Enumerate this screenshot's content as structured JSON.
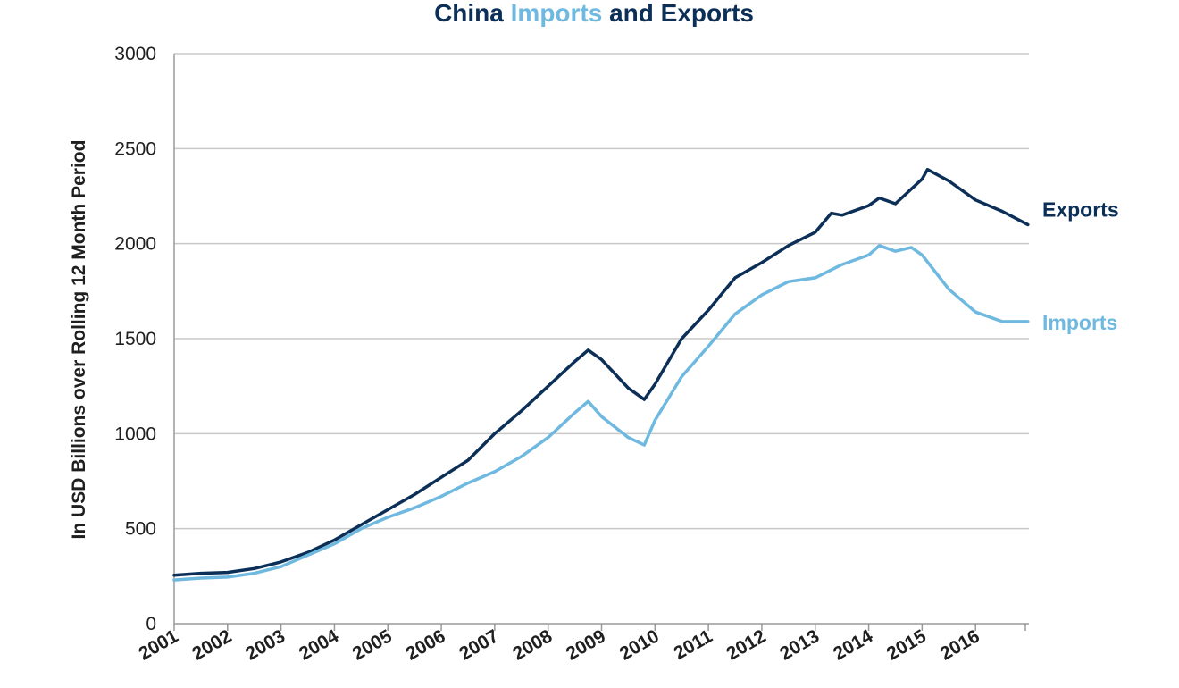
{
  "chart_data": {
    "type": "line",
    "title": {
      "part1": "China ",
      "part2": "Imports",
      "part3": " and Exports"
    },
    "ylabel": "In USD Billions over Rolling 12 Month Period",
    "xlabel": "",
    "ylim": [
      0,
      3000
    ],
    "yticks": [
      "0",
      "500",
      "1000",
      "1500",
      "2000",
      "2500",
      "3000"
    ],
    "xlim": [
      2001,
      2017
    ],
    "xticks": [
      "2001",
      "2002",
      "2003",
      "2004",
      "2005",
      "2006",
      "2007",
      "2008",
      "2009",
      "2010",
      "2011",
      "2012",
      "2013",
      "2014",
      "2015",
      "2016"
    ],
    "grid": "horizontal",
    "legend": "inline-right",
    "colors": {
      "exports": "#0b2f57",
      "imports": "#6fb9e0",
      "grid": "#c8c8c8",
      "axis": "#9a9a9a"
    },
    "series": [
      {
        "name": "Exports",
        "color": "#0b2f57",
        "x": [
          2001.0,
          2001.5,
          2002.0,
          2002.5,
          2003.0,
          2003.5,
          2004.0,
          2004.5,
          2005.0,
          2005.5,
          2006.0,
          2006.5,
          2007.0,
          2007.5,
          2008.0,
          2008.5,
          2008.75,
          2009.0,
          2009.5,
          2009.8,
          2010.0,
          2010.5,
          2011.0,
          2011.5,
          2012.0,
          2012.5,
          2013.0,
          2013.3,
          2013.5,
          2014.0,
          2014.2,
          2014.5,
          2015.0,
          2015.1,
          2015.5,
          2016.0,
          2016.5,
          2016.98
        ],
        "y": [
          255,
          265,
          270,
          290,
          325,
          375,
          440,
          520,
          600,
          680,
          770,
          860,
          1000,
          1120,
          1250,
          1380,
          1440,
          1390,
          1240,
          1180,
          1260,
          1500,
          1650,
          1820,
          1900,
          1990,
          2060,
          2160,
          2150,
          2200,
          2240,
          2210,
          2340,
          2390,
          2330,
          2230,
          2170,
          2100
        ]
      },
      {
        "name": "Imports",
        "color": "#6fb9e0",
        "x": [
          2001.0,
          2001.5,
          2002.0,
          2002.5,
          2003.0,
          2003.5,
          2004.0,
          2004.5,
          2005.0,
          2005.5,
          2006.0,
          2006.5,
          2007.0,
          2007.5,
          2008.0,
          2008.5,
          2008.75,
          2009.0,
          2009.5,
          2009.8,
          2010.0,
          2010.5,
          2011.0,
          2011.5,
          2012.0,
          2012.5,
          2013.0,
          2013.5,
          2014.0,
          2014.2,
          2014.5,
          2014.8,
          2015.0,
          2015.5,
          2016.0,
          2016.5,
          2016.98
        ],
        "y": [
          230,
          240,
          245,
          265,
          300,
          360,
          420,
          500,
          560,
          610,
          670,
          740,
          800,
          880,
          980,
          1110,
          1170,
          1090,
          980,
          940,
          1070,
          1300,
          1460,
          1630,
          1730,
          1800,
          1820,
          1890,
          1940,
          1990,
          1960,
          1980,
          1940,
          1760,
          1640,
          1590,
          1590
        ]
      }
    ]
  }
}
